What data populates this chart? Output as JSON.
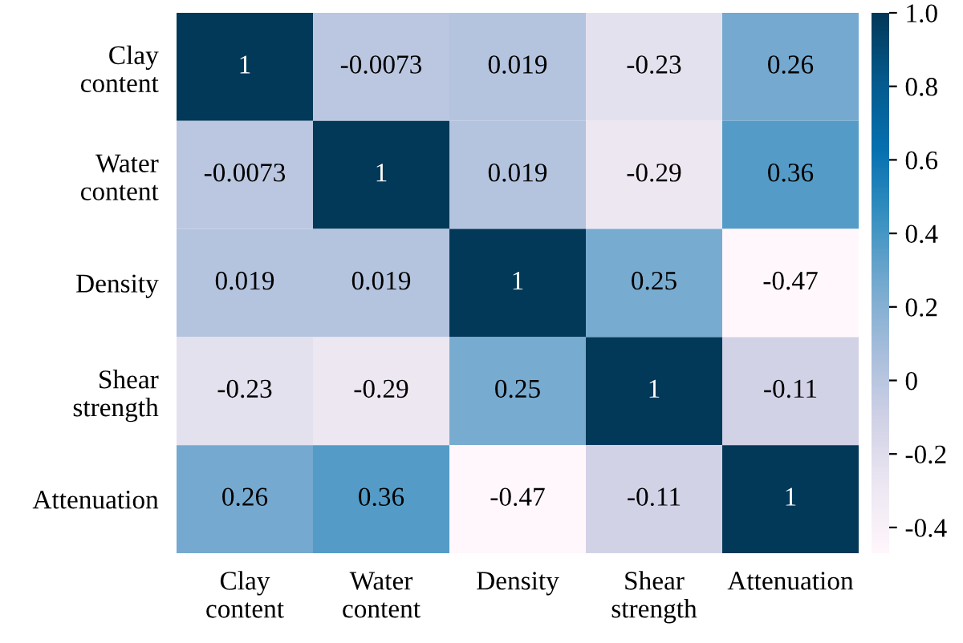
{
  "chart_data": {
    "type": "heatmap",
    "categories": [
      "Clay\ncontent",
      "Water\ncontent",
      "Density",
      "Shear\nstrength",
      "Attenuation"
    ],
    "y_categories": [
      "Clay\ncontent",
      "Water\ncontent",
      "Density",
      "Shear\nstrength",
      "Attenuation"
    ],
    "cells": [
      [
        1,
        -0.0073,
        0.019,
        -0.23,
        0.26
      ],
      [
        -0.0073,
        1,
        0.019,
        -0.29,
        0.36
      ],
      [
        0.019,
        0.019,
        1,
        0.25,
        -0.47
      ],
      [
        -0.23,
        -0.29,
        0.25,
        1,
        -0.11
      ],
      [
        0.26,
        0.36,
        -0.47,
        -0.11,
        1
      ]
    ],
    "data_labels": true,
    "clim": [
      -0.47,
      1.0
    ],
    "cticks": [
      {
        "value": -0.4,
        "label": "-0.4"
      },
      {
        "value": -0.2,
        "label": "-0.2"
      },
      {
        "value": 0,
        "label": "0"
      },
      {
        "value": 0.2,
        "label": "0.2"
      },
      {
        "value": 0.4,
        "label": "0.4"
      },
      {
        "value": 0.6,
        "label": "0.6"
      },
      {
        "value": 0.8,
        "label": "0.8"
      },
      {
        "value": 1.0,
        "label": "1.0"
      }
    ]
  }
}
